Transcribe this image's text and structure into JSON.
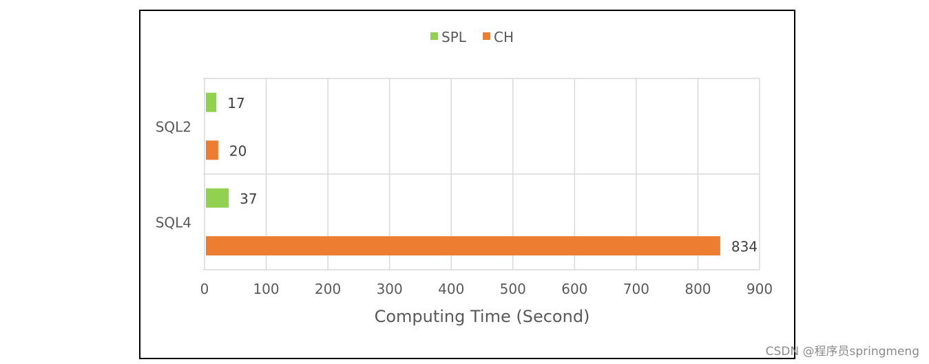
{
  "chart_data": {
    "type": "bar",
    "orientation": "horizontal",
    "categories": [
      "SQL2",
      "SQL4"
    ],
    "series": [
      {
        "name": "SPL",
        "color": "#92d050",
        "values": [
          17,
          37
        ]
      },
      {
        "name": "CH",
        "color": "#ed7d31",
        "values": [
          20,
          834
        ]
      }
    ],
    "xlabel": "Computing Time (Second)",
    "ylabel": "",
    "xlim": [
      0,
      900
    ],
    "xticks": [
      0,
      100,
      200,
      300,
      400,
      500,
      600,
      700,
      800,
      900
    ],
    "grid": true,
    "legend_position": "top-center",
    "data_labels": true
  },
  "watermark": "CSDN @程序员springmeng"
}
